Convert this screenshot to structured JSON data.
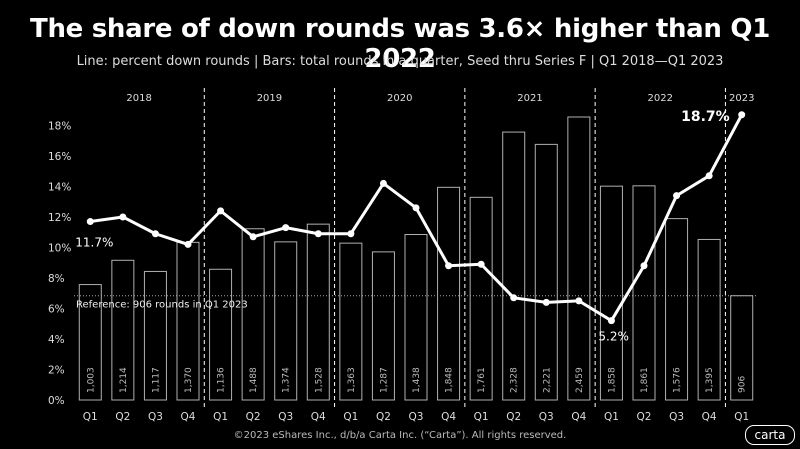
{
  "header": {
    "title": "The share of down rounds was 3.6× higher than Q1 2022",
    "subtitle": "Line: percent down rounds | Bars: total rounds in a quarter, Seed thru Series F | Q1 2018—Q1 2023"
  },
  "footer": {
    "copyright": "©2023 eShares Inc., d/b/a Carta Inc. (“Carta”). All rights reserved.",
    "logo": "carta"
  },
  "chart_data": {
    "type": "bar+line",
    "years": [
      "2018",
      "2019",
      "2020",
      "2021",
      "2022",
      "2023"
    ],
    "categories": [
      "Q1",
      "Q2",
      "Q3",
      "Q4",
      "Q1",
      "Q2",
      "Q3",
      "Q4",
      "Q1",
      "Q2",
      "Q3",
      "Q4",
      "Q1",
      "Q2",
      "Q3",
      "Q4",
      "Q1",
      "Q2",
      "Q3",
      "Q4",
      "Q1"
    ],
    "bar_values": [
      1003,
      1214,
      1117,
      1370,
      1136,
      1488,
      1374,
      1528,
      1363,
      1287,
      1438,
      1848,
      1761,
      2328,
      2221,
      2459,
      1858,
      1861,
      1576,
      1395,
      906
    ],
    "bar_labels": [
      "1,003",
      "1,214",
      "1,117",
      "1,370",
      "1,136",
      "1,488",
      "1,374",
      "1,528",
      "1,363",
      "1,287",
      "1,438",
      "1,848",
      "1,761",
      "2,328",
      "2,221",
      "2,459",
      "1,858",
      "1,861",
      "1,576",
      "1,395",
      "906"
    ],
    "line_values": [
      11.7,
      12.0,
      10.9,
      10.2,
      12.4,
      10.7,
      11.3,
      10.9,
      10.9,
      14.2,
      12.6,
      8.8,
      8.9,
      6.7,
      6.4,
      6.5,
      5.2,
      8.8,
      13.4,
      14.7,
      18.7
    ],
    "y_ticks": [
      "0%",
      "2%",
      "4%",
      "6%",
      "8%",
      "10%",
      "12%",
      "14%",
      "16%",
      "18%"
    ],
    "ylim": [
      0,
      19.8
    ],
    "annotations": {
      "first": "11.7%",
      "min": "5.2%",
      "last": "18.7%",
      "reference": "Reference: 906 rounds in Q1 2023"
    },
    "reference_value": 906,
    "colors": {
      "background": "#000000",
      "line": "#ffffff",
      "bar_stroke": "#b0b0b0"
    }
  }
}
